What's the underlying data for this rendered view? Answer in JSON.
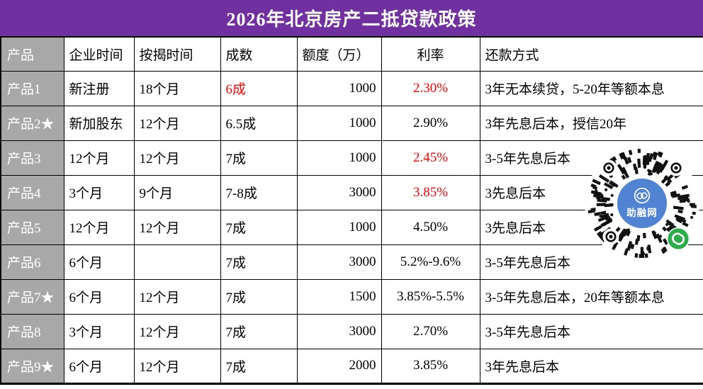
{
  "title": "2026年北京房产二抵贷款政策",
  "colors": {
    "title_purple": "#7030A0",
    "row_label_gray": "#A8A8A8",
    "highlight_red": "#FF0000",
    "qr_blue": "#5083D2",
    "qr_green": "#2BAE49"
  },
  "table": {
    "columns": [
      "产品",
      "企业时间",
      "按揭时间",
      "成数",
      "额度（万）",
      "利率",
      "还款方式"
    ],
    "rows": [
      {
        "product": "产品1",
        "company_age": "新注册",
        "mortgage_age": "18个月",
        "ltv": "6成",
        "quota": "1000",
        "rate": "2.30%",
        "repayment": "3年无本续贷，5-20年等额本息",
        "ltv_red": true,
        "rate_red": true
      },
      {
        "product": "产品2★",
        "company_age": "新加股东",
        "mortgage_age": "12个月",
        "ltv": "6.5成",
        "quota": "1000",
        "rate": "2.90%",
        "repayment": "3年先息后本，授信20年"
      },
      {
        "product": "产品3",
        "company_age": "12个月",
        "mortgage_age": "12个月",
        "ltv": "7成",
        "quota": "1000",
        "rate": "2.45%",
        "repayment": "3-5年先息后本",
        "rate_red": true
      },
      {
        "product": "产品4",
        "company_age": "3个月",
        "mortgage_age": "9个月",
        "ltv": "7-8成",
        "quota": "3000",
        "rate": "3.85%",
        "repayment": "3先息后本",
        "rate_red": true
      },
      {
        "product": "产品5",
        "company_age": "12个月",
        "mortgage_age": "12个月",
        "ltv": "7成",
        "quota": "1000",
        "rate": "4.50%",
        "repayment": "3先息后本"
      },
      {
        "product": "产品6",
        "company_age": "6个月",
        "mortgage_age": "",
        "ltv": "7成",
        "quota": "3000",
        "rate": "5.2%-9.6%",
        "repayment": "3-5年先息后本"
      },
      {
        "product": "产品7★",
        "company_age": "6个月",
        "mortgage_age": "12个月",
        "ltv": "7成",
        "quota": "1500",
        "rate": "3.85%-5.5%",
        "repayment": "3-5年先息后本，20年等额本息"
      },
      {
        "product": "产品8",
        "company_age": "3个月",
        "mortgage_age": "12个月",
        "ltv": "7成",
        "quota": "3000",
        "rate": "2.70%",
        "repayment": "3-5年先息后本"
      },
      {
        "product": "产品9★",
        "company_age": "6个月",
        "mortgage_age": "12个月",
        "ltv": "7成",
        "quota": "2000",
        "rate": "3.85%",
        "repayment": "3年先息后本"
      }
    ]
  },
  "qr_badge": {
    "label": "助融网"
  }
}
